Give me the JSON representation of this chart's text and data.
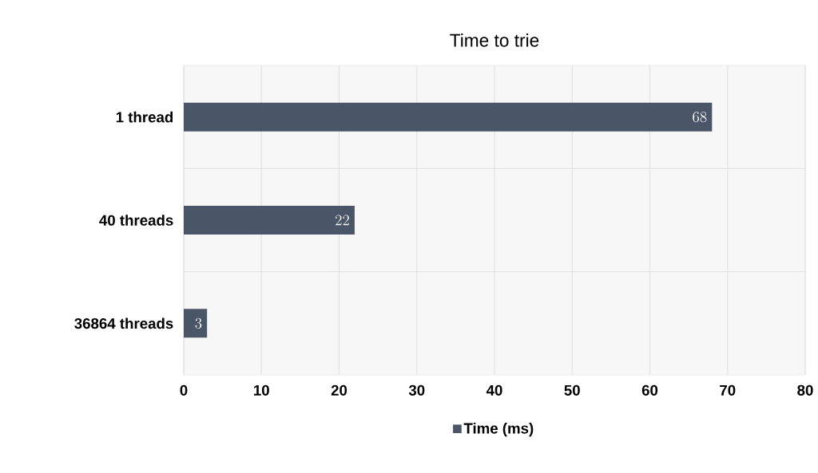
{
  "chart_data": {
    "type": "bar",
    "orientation": "horizontal",
    "title": "Time to trie",
    "categories": [
      "1 thread",
      "40 threads",
      "36864 threads"
    ],
    "series": [
      {
        "name": "Time (ms)",
        "color": "#4a5567",
        "values": [
          68,
          22,
          3
        ]
      }
    ],
    "xlim": [
      0,
      80
    ],
    "xticks": [
      0,
      10,
      20,
      30,
      40,
      50,
      60,
      70,
      80
    ],
    "grid": true,
    "legend": "bottom",
    "data_labels": true
  }
}
